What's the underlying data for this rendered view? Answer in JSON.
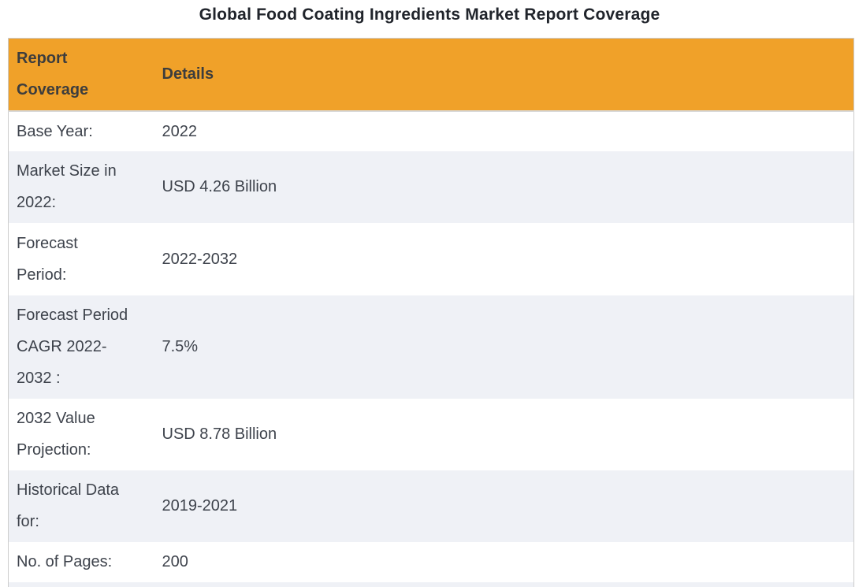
{
  "page": {
    "title": "Global Food Coating Ingredients Market Report Coverage"
  },
  "table": {
    "header": {
      "col1": "Report\nCoverage",
      "col2": "Details"
    },
    "rows": [
      {
        "label": "Base Year:",
        "value": "2022"
      },
      {
        "label": "Market Size in\n2022:",
        "value": "USD 4.26 Billion"
      },
      {
        "label": "Forecast\nPeriod:",
        "value": "2022-2032"
      },
      {
        "label": "Forecast Period\nCAGR 2022-\n2032 :",
        "value": "7.5%"
      },
      {
        "label": "2032 Value\nProjection:",
        "value": "USD 8.78 Billion"
      },
      {
        "label": "Historical Data\nfor:",
        "value": "2019-2021"
      },
      {
        "label": "No. of Pages:",
        "value": "200"
      }
    ],
    "colors": {
      "header_bg": "#F0A129",
      "stripe_bg": "#EFF1F6",
      "row_bg": "#FFFFFF",
      "border": "#CCCCCC",
      "header_divider": "#D9D9D9",
      "header_text": "#3D3D3D",
      "body_text": "#3E434C",
      "title_text": "#20242B"
    }
  }
}
